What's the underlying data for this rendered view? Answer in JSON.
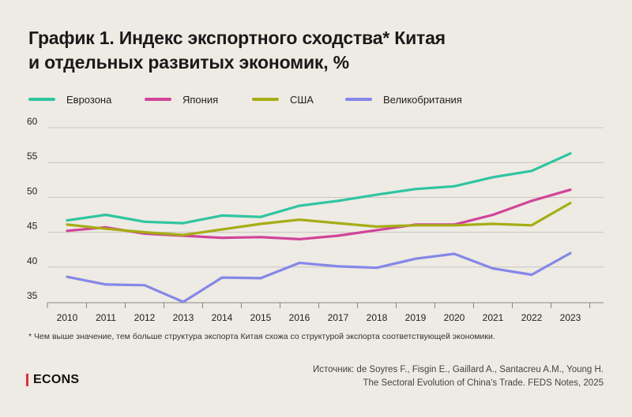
{
  "title_line1": "График 1. Индекс экспортного сходства* Китая",
  "title_line2": "и отдельных развитых экономик, %",
  "footnote": "* Чем выше значение, тем больше структура экспорта Китая схожа со структурой экспорта соответствующей экономики.",
  "brand": "ECONS",
  "source_line1": "Источник: de Soyres F., Fisgin E., Gaillard A., Santacreu A.M., Young H.",
  "source_line2": "The Sectoral Evolution of China's Trade. FEDS Notes, 2025",
  "colors": {
    "background": "#eeeae4",
    "grid": "#c9c4be",
    "brand_accent": "#e0313b"
  },
  "chart_data": {
    "type": "line",
    "title": "",
    "xlabel": "",
    "ylabel": "",
    "x": [
      "2010",
      "2011",
      "2012",
      "2013",
      "2014",
      "2015",
      "2016",
      "2017",
      "2018",
      "2019",
      "2020",
      "2021",
      "2022",
      "2023"
    ],
    "yticks": [
      "35",
      "40",
      "45",
      "50",
      "55",
      "60"
    ],
    "ylim": [
      35,
      60
    ],
    "grid": "horizontal",
    "legend": "top-left",
    "series": [
      {
        "name": "Еврозона",
        "color": "#2fc5a0",
        "values": [
          46.7,
          47.5,
          46.5,
          46.3,
          47.4,
          47.2,
          48.8,
          49.5,
          50.4,
          51.2,
          51.6,
          52.9,
          53.8,
          56.3
        ]
      },
      {
        "name": "Япония",
        "color": "#d0449a",
        "values": [
          45.2,
          45.7,
          44.8,
          44.5,
          44.2,
          44.3,
          44.0,
          44.5,
          45.3,
          46.1,
          46.1,
          47.5,
          49.5,
          51.1
        ]
      },
      {
        "name": "США",
        "color": "#a6ad14",
        "values": [
          46.1,
          45.5,
          45.0,
          44.6,
          45.4,
          46.2,
          46.8,
          46.3,
          45.8,
          46.0,
          46.0,
          46.2,
          46.0,
          49.2
        ]
      },
      {
        "name": "Великобритания",
        "color": "#8587e8",
        "values": [
          38.6,
          37.5,
          37.4,
          35.0,
          38.5,
          38.4,
          40.6,
          40.1,
          39.9,
          41.2,
          41.9,
          39.8,
          38.9,
          42.0
        ]
      }
    ]
  }
}
